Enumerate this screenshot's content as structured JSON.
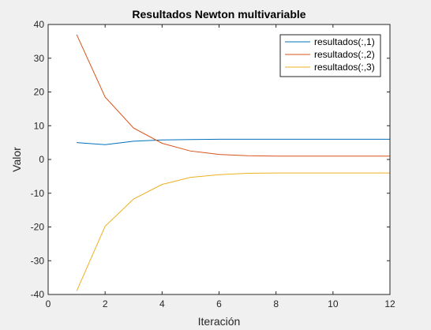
{
  "chart_data": {
    "type": "line",
    "title": "Resultados Newton multivariable",
    "xlabel": "Iteración",
    "ylabel": "Valor",
    "xlim": [
      0,
      12
    ],
    "ylim": [
      -40,
      40
    ],
    "xticks": [
      0,
      2,
      4,
      6,
      8,
      10,
      12
    ],
    "yticks": [
      -40,
      -30,
      -20,
      -10,
      0,
      10,
      20,
      30,
      40
    ],
    "grid": false,
    "legend_position": "top-right",
    "x": [
      1,
      2,
      3,
      4,
      5,
      6,
      7,
      8,
      9,
      10,
      11,
      12
    ],
    "series": [
      {
        "name": "resultados(:,1)",
        "color": "#0072BD",
        "values": [
          5.0,
          4.4,
          5.4,
          5.8,
          5.9,
          6.0,
          6.0,
          6.0,
          6.0,
          6.0,
          6.0,
          6.0
        ]
      },
      {
        "name": "resultados(:,2)",
        "color": "#D95319",
        "values": [
          37.0,
          18.5,
          9.3,
          4.8,
          2.5,
          1.5,
          1.1,
          1.0,
          1.0,
          1.0,
          1.0,
          1.0
        ]
      },
      {
        "name": "resultados(:,3)",
        "color": "#EDB120",
        "values": [
          -39.0,
          -19.8,
          -11.7,
          -7.4,
          -5.3,
          -4.5,
          -4.1,
          -4.0,
          -4.0,
          -4.0,
          -4.0,
          -4.0
        ]
      }
    ]
  }
}
